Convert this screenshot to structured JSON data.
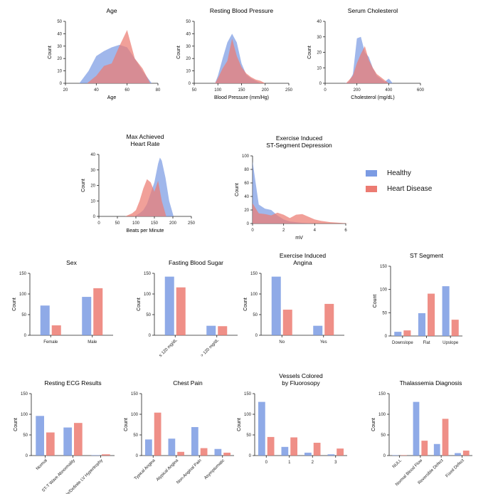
{
  "legend": {
    "healthy": "Healthy",
    "heart_disease": "Heart Disease"
  },
  "colors": {
    "healthy": "#7b9be3",
    "heart_disease": "#ec7b72",
    "axis": "#222222"
  },
  "chart_data": [
    {
      "id": "age",
      "type": "area",
      "title": [
        "Age"
      ],
      "xlabel": "Age",
      "ylabel": "Count",
      "xlim": [
        20,
        80
      ],
      "ylim": [
        0,
        50
      ],
      "xticks": [
        20,
        40,
        60,
        80
      ],
      "yticks": [
        0,
        10,
        20,
        30,
        40,
        50
      ],
      "series": [
        {
          "name": "Healthy",
          "x": [
            29,
            35,
            40,
            45,
            50,
            55,
            60,
            65,
            70,
            76
          ],
          "y": [
            0,
            10,
            22,
            26,
            29,
            31,
            29,
            20,
            10,
            0
          ]
        },
        {
          "name": "Heart Disease",
          "x": [
            34,
            40,
            45,
            50,
            55,
            60,
            65,
            70,
            75
          ],
          "y": [
            0,
            6,
            14,
            16,
            30,
            43,
            20,
            12,
            0
          ]
        }
      ]
    },
    {
      "id": "bp",
      "type": "area",
      "title": [
        "Resting Blood Pressure"
      ],
      "xlabel": "Blood Pressure (mm/Hg)",
      "ylabel": "Count",
      "xlim": [
        50,
        250
      ],
      "ylim": [
        0,
        50
      ],
      "xticks": [
        50,
        100,
        150,
        200,
        250
      ],
      "yticks": [
        0,
        10,
        20,
        30,
        40,
        50
      ],
      "series": [
        {
          "name": "Healthy",
          "x": [
            94,
            100,
            110,
            120,
            130,
            140,
            150,
            160,
            170,
            180,
            192
          ],
          "y": [
            0,
            6,
            20,
            33,
            40,
            33,
            16,
            7,
            4,
            2,
            0
          ]
        },
        {
          "name": "Heart Disease",
          "x": [
            94,
            100,
            110,
            120,
            130,
            140,
            150,
            160,
            170,
            180,
            190,
            200
          ],
          "y": [
            0,
            4,
            12,
            18,
            36,
            22,
            13,
            8,
            5,
            3,
            2,
            0
          ]
        }
      ]
    },
    {
      "id": "chol",
      "type": "area",
      "title": [
        "Serum Cholesterol"
      ],
      "xlabel": "Cholesterol (mg/dL)",
      "ylabel": "Count",
      "xlim": [
        0,
        600
      ],
      "ylim": [
        0,
        40
      ],
      "xticks": [
        0,
        200,
        400,
        600
      ],
      "yticks": [
        0,
        10,
        20,
        30,
        40
      ],
      "series": [
        {
          "name": "Healthy",
          "x": [
            126,
            150,
            175,
            200,
            225,
            250,
            275,
            300,
            325,
            350,
            375,
            400,
            410,
            425,
            450
          ],
          "y": [
            0,
            1,
            6,
            29,
            30,
            20,
            17,
            10,
            5,
            3,
            1,
            3,
            2,
            0,
            0
          ]
        },
        {
          "name": "Heart Disease",
          "x": [
            131,
            150,
            175,
            200,
            225,
            250,
            275,
            300,
            325,
            350,
            375,
            400
          ],
          "y": [
            0,
            2,
            5,
            13,
            19,
            24,
            15,
            10,
            6,
            4,
            2,
            0
          ]
        }
      ]
    },
    {
      "id": "hr",
      "type": "area",
      "title": [
        "Max Achieved",
        "Heart Rate"
      ],
      "xlabel": "Beats per Minute",
      "ylabel": "Count",
      "xlim": [
        0,
        250
      ],
      "ylim": [
        0,
        40
      ],
      "xticks": [
        0,
        50,
        100,
        150,
        200,
        250
      ],
      "yticks": [
        0,
        10,
        20,
        30,
        40
      ],
      "series": [
        {
          "name": "Healthy",
          "x": [
            96,
            110,
            120,
            130,
            140,
            150,
            160,
            165,
            170,
            180,
            190,
            202
          ],
          "y": [
            0,
            2,
            4,
            8,
            15,
            22,
            34,
            38,
            36,
            25,
            10,
            0
          ]
        },
        {
          "name": "Heart Disease",
          "x": [
            71,
            90,
            100,
            110,
            120,
            130,
            140,
            150,
            160,
            170,
            182
          ],
          "y": [
            0,
            2,
            4,
            10,
            18,
            24,
            22,
            16,
            23,
            10,
            0
          ]
        }
      ]
    },
    {
      "id": "st",
      "type": "area",
      "title": [
        "Exercise Induced",
        "ST-Segment Depression"
      ],
      "xlabel": "mV",
      "ylabel": "Count",
      "xlim": [
        0,
        6
      ],
      "ylim": [
        0,
        100
      ],
      "xticks": [
        0,
        2,
        4,
        6
      ],
      "yticks": [
        0,
        20,
        40,
        60,
        80,
        100
      ],
      "series": [
        {
          "name": "Healthy",
          "x": [
            0,
            0.4,
            0.8,
            1.2,
            1.6,
            2.0,
            2.4,
            2.8,
            3.2,
            3.6,
            4.2
          ],
          "y": [
            92,
            28,
            22,
            20,
            12,
            6,
            3,
            2,
            1,
            0.5,
            0
          ]
        },
        {
          "name": "Heart Disease",
          "x": [
            0,
            0.4,
            0.8,
            1.2,
            1.6,
            2.0,
            2.4,
            2.8,
            3.2,
            3.6,
            4.0,
            4.4,
            5.0,
            5.6,
            6.2
          ],
          "y": [
            30,
            15,
            14,
            12,
            16,
            13,
            8,
            13,
            14,
            10,
            6,
            4,
            2,
            1,
            0
          ]
        }
      ]
    },
    {
      "id": "sex",
      "type": "bar",
      "title": [
        "Sex"
      ],
      "xlabel": "",
      "ylabel": "Count",
      "ylim": [
        0,
        150
      ],
      "yticks": [
        0,
        50,
        100,
        150
      ],
      "rotate": false,
      "categories": [
        "Female",
        "Male"
      ],
      "series": [
        {
          "name": "Healthy",
          "values": [
            72,
            93
          ]
        },
        {
          "name": "Heart Disease",
          "values": [
            24,
            114
          ]
        }
      ]
    },
    {
      "id": "fbs",
      "type": "bar",
      "title": [
        "Fasting Blood Sugar"
      ],
      "xlabel": "",
      "ylabel": "Count",
      "ylim": [
        0,
        150
      ],
      "yticks": [
        0,
        50,
        100,
        150
      ],
      "rotate": true,
      "categories": [
        "≤ 120 mg/dL",
        "> 120 mg/dL"
      ],
      "series": [
        {
          "name": "Healthy",
          "values": [
            142,
            23
          ]
        },
        {
          "name": "Heart Disease",
          "values": [
            116,
            22
          ]
        }
      ]
    },
    {
      "id": "exang",
      "type": "bar",
      "title": [
        "Exercise Induced",
        "Angina"
      ],
      "xlabel": "",
      "ylabel": "Count",
      "ylim": [
        0,
        150
      ],
      "yticks": [
        0,
        50,
        100,
        150
      ],
      "rotate": false,
      "categories": [
        "No",
        "Yes"
      ],
      "series": [
        {
          "name": "Healthy",
          "values": [
            142,
            23
          ]
        },
        {
          "name": "Heart Disease",
          "values": [
            62,
            76
          ]
        }
      ]
    },
    {
      "id": "slope",
      "type": "bar",
      "title": [
        "ST Segment"
      ],
      "xlabel": "",
      "ylabel": "Count",
      "ylim": [
        0,
        150
      ],
      "yticks": [
        0,
        50,
        100,
        150
      ],
      "rotate": false,
      "categories": [
        "Downslope",
        "Flat",
        "Upslope"
      ],
      "series": [
        {
          "name": "Healthy",
          "values": [
            9,
            49,
            107
          ]
        },
        {
          "name": "Heart Disease",
          "values": [
            12,
            91,
            35
          ]
        }
      ]
    },
    {
      "id": "ecg",
      "type": "bar",
      "title": [
        "Resting ECG Results"
      ],
      "xlabel": "",
      "ylabel": "Count",
      "ylim": [
        0,
        150
      ],
      "yticks": [
        0,
        50,
        100,
        150
      ],
      "rotate": true,
      "categories": [
        "Normal",
        "ST-T Wave Abnormality",
        "Probable/Definite LV Hypertrophy"
      ],
      "series": [
        {
          "name": "Healthy",
          "values": [
            96,
            68,
            1
          ]
        },
        {
          "name": "Heart Disease",
          "values": [
            56,
            79,
            3
          ]
        }
      ]
    },
    {
      "id": "cp",
      "type": "bar",
      "title": [
        "Chest Pain"
      ],
      "xlabel": "",
      "ylabel": "Count",
      "ylim": [
        0,
        150
      ],
      "yticks": [
        0,
        50,
        100,
        150
      ],
      "rotate": true,
      "categories": [
        "Typical Angina",
        "Atypical Angina",
        "Non-Anginal Pain",
        "Asymptomatic"
      ],
      "series": [
        {
          "name": "Healthy",
          "values": [
            39,
            41,
            69,
            16
          ]
        },
        {
          "name": "Heart Disease",
          "values": [
            104,
            9,
            18,
            7
          ]
        }
      ]
    },
    {
      "id": "ca",
      "type": "bar",
      "title": [
        "Vessels Colored",
        "by Fluorosopy"
      ],
      "xlabel": "",
      "ylabel": "Count",
      "ylim": [
        0,
        150
      ],
      "yticks": [
        0,
        50,
        100,
        150
      ],
      "rotate": false,
      "categories": [
        "0",
        "1",
        "2",
        "3"
      ],
      "series": [
        {
          "name": "Healthy",
          "values": [
            130,
            21,
            7,
            3
          ]
        },
        {
          "name": "Heart Disease",
          "values": [
            45,
            44,
            31,
            17
          ]
        }
      ]
    },
    {
      "id": "thal",
      "type": "bar",
      "title": [
        "Thalassemia Diagnosis"
      ],
      "xlabel": "",
      "ylabel": "Count",
      "ylim": [
        0,
        150
      ],
      "yticks": [
        0,
        50,
        100,
        150
      ],
      "rotate": true,
      "categories": [
        "NULL",
        "Normal Blood Flow",
        "Reversible Defect",
        "Fixed Defect"
      ],
      "series": [
        {
          "name": "Healthy",
          "values": [
            1,
            130,
            28,
            6
          ]
        },
        {
          "name": "Heart Disease",
          "values": [
            1,
            36,
            89,
            12
          ]
        }
      ]
    }
  ]
}
